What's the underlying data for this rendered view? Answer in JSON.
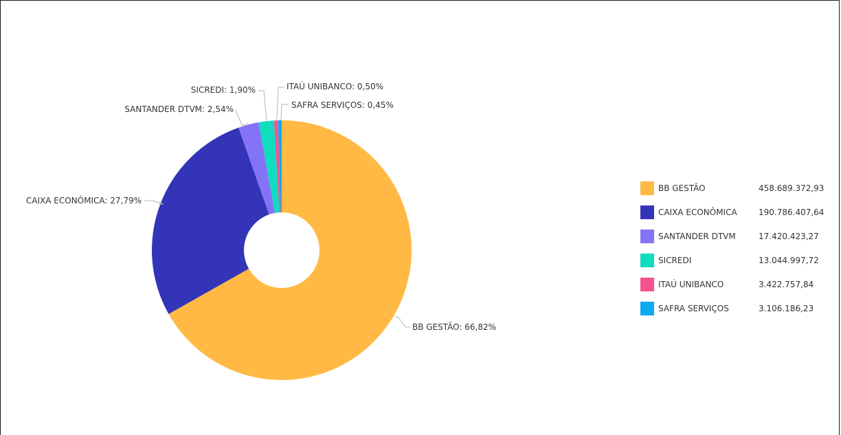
{
  "chart_data": {
    "type": "pie",
    "donut": true,
    "legend_position": "right",
    "slices": [
      {
        "name": "BB GESTÃO",
        "label": "BB GESTÃO: 66,82%",
        "value_text": "458.689.372,93",
        "value": 458689372.93,
        "percent": 66.82,
        "color": "#ffb944"
      },
      {
        "name": "CAIXA ECONÔMICA",
        "label": "CAIXA ECONÔMICA: 27,79%",
        "value_text": "190.786.407,64",
        "value": 190786407.64,
        "percent": 27.79,
        "color": "#3434b8"
      },
      {
        "name": "SANTANDER DTVM",
        "label": "SANTANDER DTVM: 2,54%",
        "value_text": "17.420.423,27",
        "value": 17420423.27,
        "percent": 2.54,
        "color": "#8573f7"
      },
      {
        "name": "SICREDI",
        "label": "SICREDI: 1,90%",
        "value_text": "13.044.997,72",
        "value": 13044997.72,
        "percent": 1.9,
        "color": "#10dcbf"
      },
      {
        "name": "ITAÚ UNIBANCO",
        "label": "ITAÚ UNIBANCO: 0,50%",
        "value_text": "3.422.757,84",
        "value": 3422757.84,
        "percent": 0.5,
        "color": "#f6538e"
      },
      {
        "name": "SAFRA SERVIÇOS",
        "label": "SAFRA SERVIÇOS: 0,45%",
        "value_text": "3.106.186,23",
        "value": 3106186.23,
        "percent": 0.45,
        "color": "#0fa9f2"
      }
    ]
  }
}
